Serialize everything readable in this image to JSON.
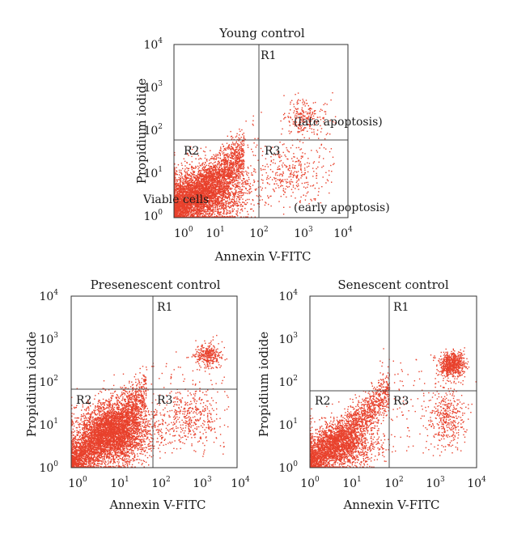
{
  "chart_data": [
    {
      "type": "scatter",
      "title": "Young control",
      "xlabel": "Annexin V-FITC",
      "ylabel": "Propidium iodide",
      "xscale": "log",
      "yscale": "log",
      "xlim": [
        1,
        10000
      ],
      "ylim": [
        1,
        10000
      ],
      "xticks": [
        {
          "base": "10",
          "exp": "0"
        },
        {
          "base": "10",
          "exp": "1"
        },
        {
          "base": "10",
          "exp": "2"
        },
        {
          "base": "10",
          "exp": "3"
        },
        {
          "base": "10",
          "exp": "4"
        }
      ],
      "yticks": [
        {
          "base": "10",
          "exp": "0"
        },
        {
          "base": "10",
          "exp": "1"
        },
        {
          "base": "10",
          "exp": "2"
        },
        {
          "base": "10",
          "exp": "3"
        },
        {
          "base": "10",
          "exp": "4"
        }
      ],
      "gate": {
        "x": 80,
        "y": 80
      },
      "region_labels": [
        "R1",
        "R2",
        "R3"
      ],
      "annotations": [
        "(late apoptosis)",
        "Viable cells",
        "(early apoptosis)"
      ],
      "point_color": "#e8412c",
      "grid": false,
      "populations": [
        {
          "type": "diagonal",
          "x_log": [
            0.0,
            1.6
          ],
          "y_spread": 0.28,
          "count": 2600
        },
        {
          "type": "cluster",
          "center": [
            3,
            3
          ],
          "spread": [
            0.8,
            0.55
          ],
          "count": 2400
        },
        {
          "type": "cluster",
          "center": [
            12,
            5
          ],
          "spread": [
            0.7,
            0.7
          ],
          "count": 700
        },
        {
          "type": "cluster",
          "center": [
            1000,
            200
          ],
          "spread": [
            0.4,
            0.35
          ],
          "count": 220
        },
        {
          "type": "cluster",
          "center": [
            500,
            10
          ],
          "spread": [
            0.55,
            0.55
          ],
          "count": 240
        },
        {
          "type": "uniform",
          "x": [
            40,
            5000
          ],
          "y": [
            2,
            300
          ],
          "count": 150
        }
      ]
    },
    {
      "type": "scatter",
      "title": "Presenescent control",
      "xlabel": "Annexin V-FITC",
      "ylabel": "Propidium iodide",
      "xscale": "log",
      "yscale": "log",
      "xlim": [
        1,
        10000
      ],
      "ylim": [
        1,
        10000
      ],
      "xticks": [
        {
          "base": "10",
          "exp": "0"
        },
        {
          "base": "10",
          "exp": "1"
        },
        {
          "base": "10",
          "exp": "2"
        },
        {
          "base": "10",
          "exp": "3"
        },
        {
          "base": "10",
          "exp": "4"
        }
      ],
      "yticks": [
        {
          "base": "10",
          "exp": "0"
        },
        {
          "base": "10",
          "exp": "1"
        },
        {
          "base": "10",
          "exp": "2"
        },
        {
          "base": "10",
          "exp": "3"
        },
        {
          "base": "10",
          "exp": "4"
        }
      ],
      "gate": {
        "x": 80,
        "y": 80
      },
      "region_labels": [
        "R1",
        "R2",
        "R3"
      ],
      "annotations": [],
      "point_color": "#e8412c",
      "grid": false,
      "populations": [
        {
          "type": "diagonal",
          "x_log": [
            0.0,
            1.8
          ],
          "y_spread": 0.3,
          "count": 2800
        },
        {
          "type": "cluster",
          "center": [
            10,
            6
          ],
          "spread": [
            0.75,
            0.6
          ],
          "count": 3200
        },
        {
          "type": "cluster",
          "center": [
            2000,
            400
          ],
          "spread": [
            0.25,
            0.25
          ],
          "count": 300
        },
        {
          "type": "cluster",
          "center": [
            700,
            15
          ],
          "spread": [
            0.55,
            0.55
          ],
          "count": 350
        },
        {
          "type": "uniform",
          "x": [
            60,
            6000
          ],
          "y": [
            2,
            500
          ],
          "count": 150
        }
      ]
    },
    {
      "type": "scatter",
      "title": "Senescent control",
      "xlabel": "Annexin V-FITC",
      "ylabel": "Propidium iodide",
      "xscale": "log",
      "yscale": "log",
      "xlim": [
        1,
        10000
      ],
      "ylim": [
        1,
        10000
      ],
      "xticks": [
        {
          "base": "10",
          "exp": "0"
        },
        {
          "base": "10",
          "exp": "1"
        },
        {
          "base": "10",
          "exp": "2"
        },
        {
          "base": "10",
          "exp": "3"
        },
        {
          "base": "10",
          "exp": "4"
        }
      ],
      "yticks": [
        {
          "base": "10",
          "exp": "0"
        },
        {
          "base": "10",
          "exp": "1"
        },
        {
          "base": "10",
          "exp": "2"
        },
        {
          "base": "10",
          "exp": "3"
        },
        {
          "base": "10",
          "exp": "4"
        }
      ],
      "gate": {
        "x": 80,
        "y": 80
      },
      "region_labels": [
        "R1",
        "R2",
        "R3"
      ],
      "annotations": [],
      "point_color": "#e8412c",
      "grid": false,
      "populations": [
        {
          "type": "diagonal",
          "x_log": [
            0.0,
            1.9
          ],
          "y_spread": 0.25,
          "count": 2200
        },
        {
          "type": "cluster",
          "center": [
            5,
            3
          ],
          "spread": [
            0.7,
            0.45
          ],
          "count": 1400
        },
        {
          "type": "cluster",
          "center": [
            2500,
            250
          ],
          "spread": [
            0.25,
            0.25
          ],
          "count": 650
        },
        {
          "type": "cluster",
          "center": [
            1800,
            15
          ],
          "spread": [
            0.35,
            0.55
          ],
          "count": 350
        },
        {
          "type": "uniform",
          "x": [
            40,
            6000
          ],
          "y": [
            2,
            600
          ],
          "count": 140
        }
      ]
    }
  ]
}
